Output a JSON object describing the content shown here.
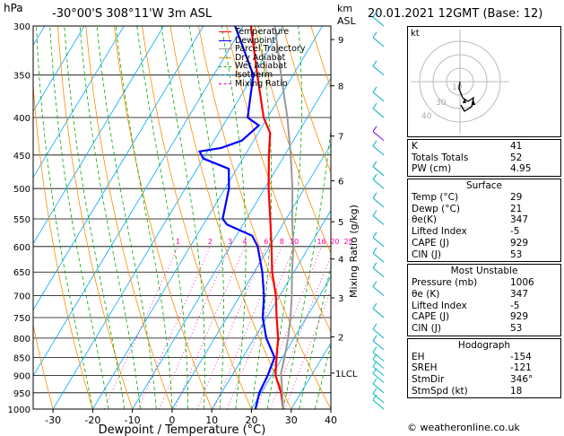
{
  "header": {
    "pressure_unit": "hPa",
    "location": "-30°00'S  308°11'W  3m  ASL",
    "height_unit_top": "km",
    "height_unit_bottom": "ASL",
    "datetime": "20.01.2021  12GMT  (Base: 12)"
  },
  "legend": [
    {
      "label": "Temperature",
      "color": "#ff0000"
    },
    {
      "label": "Dewpoint",
      "color": "#0000ff"
    },
    {
      "label": "Parcel Trajectory",
      "color": "#999999"
    },
    {
      "label": "Dry Adiabat",
      "color": "#ff8c00"
    },
    {
      "label": "Wet Adiabat",
      "color": "#00aa00"
    },
    {
      "label": "Isotherm",
      "color": "#00aaff"
    },
    {
      "label": "Mixing Ratio",
      "color": "#ff00aa"
    }
  ],
  "chart_data": {
    "type": "line",
    "title": "",
    "xlabel": "Dewpoint / Temperature (°C)",
    "ylabel": "",
    "y2label": "Mixing Ratio (g/kg)",
    "xlim": [
      -35,
      40
    ],
    "ylim": [
      1000,
      300
    ],
    "pressure_ticks": [
      300,
      350,
      400,
      450,
      500,
      550,
      600,
      650,
      700,
      750,
      800,
      850,
      900,
      950,
      1000
    ],
    "temperature_ticks": [
      -30,
      -20,
      -10,
      0,
      10,
      20,
      30,
      40
    ],
    "height_ticks": [
      {
        "label": "9",
        "p": 313
      },
      {
        "label": "8",
        "p": 362
      },
      {
        "label": "7",
        "p": 424
      },
      {
        "label": "6",
        "p": 488
      },
      {
        "label": "5",
        "p": 555
      },
      {
        "label": "4",
        "p": 624
      },
      {
        "label": "3",
        "p": 705
      },
      {
        "label": "2",
        "p": 797
      },
      {
        "label": "1LCL",
        "p": 893
      }
    ],
    "mixing_ratio_labels": [
      "1",
      "2",
      "3",
      "4",
      "6",
      "8",
      "10",
      "16",
      "20",
      "25"
    ],
    "series": [
      {
        "name": "Temperature",
        "color": "#ff0000",
        "points": [
          [
            1000,
            28
          ],
          [
            950,
            25
          ],
          [
            900,
            21
          ],
          [
            850,
            18.5
          ],
          [
            800,
            16
          ],
          [
            750,
            12.5
          ],
          [
            700,
            9
          ],
          [
            650,
            4.5
          ],
          [
            600,
            0.5
          ],
          [
            550,
            -4
          ],
          [
            500,
            -9
          ],
          [
            450,
            -14
          ],
          [
            420,
            -17
          ],
          [
            400,
            -21
          ],
          [
            350,
            -29
          ],
          [
            300,
            -38
          ]
        ]
      },
      {
        "name": "Dewpoint",
        "color": "#0000ff",
        "points": [
          [
            1000,
            21
          ],
          [
            950,
            19.5
          ],
          [
            900,
            19
          ],
          [
            850,
            18
          ],
          [
            800,
            13
          ],
          [
            750,
            9
          ],
          [
            700,
            6
          ],
          [
            650,
            2
          ],
          [
            600,
            -3
          ],
          [
            580,
            -6
          ],
          [
            560,
            -14
          ],
          [
            550,
            -16
          ],
          [
            500,
            -19
          ],
          [
            470,
            -22
          ],
          [
            455,
            -30
          ],
          [
            445,
            -32
          ],
          [
            440,
            -27
          ],
          [
            430,
            -23
          ],
          [
            410,
            -21
          ],
          [
            400,
            -25
          ],
          [
            350,
            -30
          ],
          [
            300,
            -42
          ]
        ]
      },
      {
        "name": "Parcel Trajectory",
        "color": "#999999",
        "points": [
          [
            1000,
            28
          ],
          [
            893,
            22
          ],
          [
            850,
            20.5
          ],
          [
            800,
            18.5
          ],
          [
            750,
            16
          ],
          [
            700,
            13
          ],
          [
            650,
            9.5
          ],
          [
            600,
            6
          ],
          [
            550,
            1.5
          ],
          [
            500,
            -3
          ],
          [
            450,
            -8.5
          ],
          [
            400,
            -15
          ],
          [
            350,
            -23
          ],
          [
            300,
            -32
          ]
        ]
      }
    ]
  },
  "hodograph": {
    "label": "kt",
    "ring_labels": [
      "40",
      "30",
      "10"
    ]
  },
  "indices": [
    {
      "name": "K",
      "value": "41"
    },
    {
      "name": "Totals Totals",
      "value": "52"
    },
    {
      "name": "PW (cm)",
      "value": "4.95"
    }
  ],
  "surface": {
    "title": "Surface",
    "rows": [
      {
        "name": "Temp (°C)",
        "value": "29"
      },
      {
        "name": "Dewp (°C)",
        "value": "21"
      },
      {
        "name": "θe(K)",
        "value": "347"
      },
      {
        "name": "Lifted Index",
        "value": "-5"
      },
      {
        "name": "CAPE (J)",
        "value": "929"
      },
      {
        "name": "CIN (J)",
        "value": "53"
      }
    ]
  },
  "most_unstable": {
    "title": "Most Unstable",
    "rows": [
      {
        "name": "Pressure (mb)",
        "value": "1006"
      },
      {
        "name": "θe (K)",
        "value": "347"
      },
      {
        "name": "Lifted Index",
        "value": "-5"
      },
      {
        "name": "CAPE (J)",
        "value": "929"
      },
      {
        "name": "CIN (J)",
        "value": "53"
      }
    ]
  },
  "hodograph_table": {
    "title": "Hodograph",
    "rows": [
      {
        "name": "EH",
        "value": "-154"
      },
      {
        "name": "SREH",
        "value": "-121"
      },
      {
        "name": "StmDir",
        "value": "346°"
      },
      {
        "name": "StmSpd (kt)",
        "value": "18"
      }
    ]
  },
  "credit": "© weatheronline.co.uk"
}
